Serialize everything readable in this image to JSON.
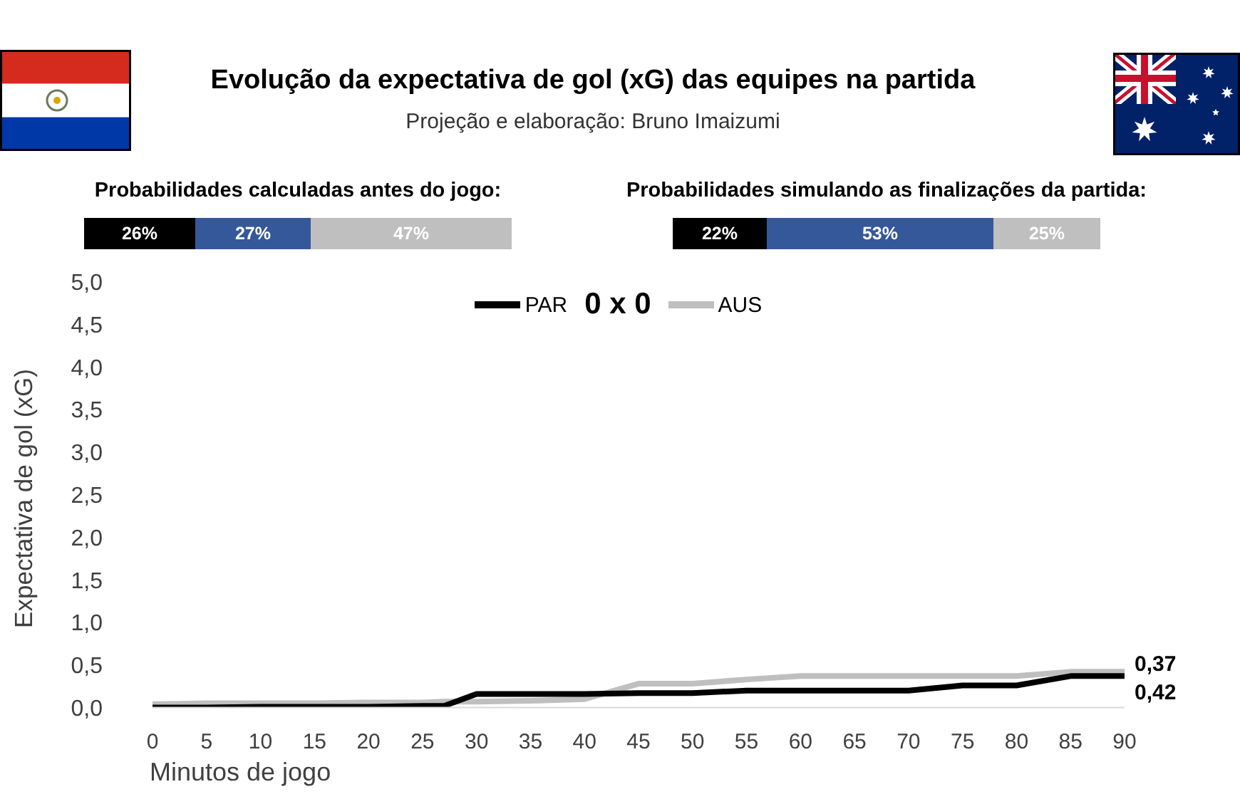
{
  "chart_data": [
    {
      "type": "other",
      "title": "Evolução da expectativa de gol (xG) das equipes na partida",
      "subtitle": "Projeção e elaboração: Bruno Imaizumi"
    },
    {
      "type": "bar",
      "title": "Probabilidades calculadas antes do jogo:",
      "orientation": "horizontal",
      "stacked": true,
      "categories": [
        null
      ],
      "series": [
        {
          "color": "#000000",
          "values": [
            26
          ],
          "value_labels": [
            "26%"
          ]
        },
        {
          "color": "#35589a",
          "values": [
            27
          ],
          "value_labels": [
            "27%"
          ]
        },
        {
          "color": "#bfbfbf",
          "values": [
            47
          ],
          "value_labels": [
            "47%"
          ]
        }
      ]
    },
    {
      "type": "bar",
      "title": "Probabilidades simulando as finalizações da partida:",
      "orientation": "horizontal",
      "stacked": true,
      "categories": [
        null
      ],
      "series": [
        {
          "color": "#000000",
          "values": [
            22
          ],
          "value_labels": [
            "22%"
          ]
        },
        {
          "color": "#35589a",
          "values": [
            53
          ],
          "value_labels": [
            "53%"
          ]
        },
        {
          "color": "#bfbfbf",
          "values": [
            25
          ],
          "value_labels": [
            "25%"
          ]
        }
      ]
    },
    {
      "type": "line",
      "xlabel": "Minutos de jogo",
      "ylabel": "Expectativa de gol (xG)",
      "x": [
        0,
        5,
        10,
        15,
        20,
        25,
        27,
        30,
        35,
        40,
        45,
        50,
        55,
        60,
        65,
        70,
        75,
        80,
        85,
        90
      ],
      "xlim": [
        0,
        90
      ],
      "xticks": [
        0,
        5,
        10,
        15,
        20,
        25,
        30,
        35,
        40,
        45,
        50,
        55,
        60,
        65,
        70,
        75,
        80,
        85,
        90
      ],
      "ylim": [
        0,
        5
      ],
      "yticks": [
        {
          "value": 0,
          "label": "0,0"
        },
        {
          "value": 0.5,
          "label": "0,5"
        },
        {
          "value": 1,
          "label": "1,0"
        },
        {
          "value": 1.5,
          "label": "1,5"
        },
        {
          "value": 2,
          "label": "2,0"
        },
        {
          "value": 2.5,
          "label": "2,5"
        },
        {
          "value": 3,
          "label": "3,0"
        },
        {
          "value": 3.5,
          "label": "3,5"
        },
        {
          "value": 4,
          "label": "4,0"
        },
        {
          "value": 4.5,
          "label": "4,5"
        },
        {
          "value": 5,
          "label": "5,0"
        }
      ],
      "series": [
        {
          "name": "PAR",
          "color": "#000000",
          "values": [
            0,
            0,
            0.01,
            0.01,
            0.01,
            0.02,
            0.02,
            0.16,
            0.16,
            0.16,
            0.17,
            0.17,
            0.2,
            0.2,
            0.2,
            0.2,
            0.26,
            0.26,
            0.37,
            0.37
          ],
          "value_labels": [
            null,
            null,
            null,
            null,
            null,
            null,
            null,
            null,
            null,
            null,
            null,
            null,
            null,
            null,
            null,
            null,
            null,
            null,
            null,
            "0,37"
          ]
        },
        {
          "name": "AUS",
          "color": "#bfbfbf",
          "values": [
            0.04,
            0.05,
            0.05,
            0.05,
            0.06,
            0.06,
            0.07,
            0.07,
            0.08,
            0.1,
            0.28,
            0.28,
            0.33,
            0.37,
            0.37,
            0.37,
            0.37,
            0.37,
            0.42,
            0.42
          ],
          "value_labels": [
            null,
            null,
            null,
            null,
            null,
            null,
            null,
            null,
            null,
            null,
            null,
            null,
            null,
            null,
            null,
            null,
            null,
            null,
            null,
            "0,42"
          ]
        }
      ],
      "legend": "top",
      "annotations": [
        "0 x 0"
      ]
    }
  ]
}
